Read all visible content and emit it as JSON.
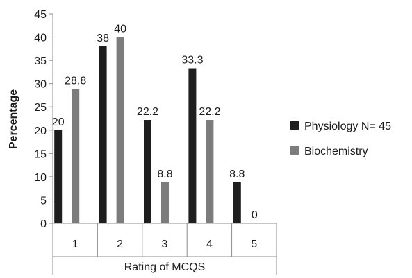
{
  "chart_data": {
    "type": "bar",
    "categories": [
      "1",
      "2",
      "3",
      "4",
      "5"
    ],
    "series": [
      {
        "name": "Physiology N= 45",
        "color": "#1e1e1e",
        "values": [
          20,
          38,
          22.2,
          33.3,
          8.8
        ],
        "labels": [
          "20",
          "38",
          "22.2",
          "33.3",
          "8.8"
        ]
      },
      {
        "name": "Biochemistry",
        "color": "#7c7c7c",
        "values": [
          28.8,
          40,
          8.8,
          22.2,
          0
        ],
        "labels": [
          "28.8",
          "40",
          "8.8",
          "22.2",
          "0"
        ]
      }
    ],
    "yticks": [
      0,
      5,
      10,
      15,
      20,
      25,
      30,
      35,
      40,
      45
    ],
    "ylim": [
      0,
      45
    ],
    "xlabel": "Rating of  MCQS",
    "ylabel": "Percentage",
    "legend_position": "right",
    "grid": false
  }
}
